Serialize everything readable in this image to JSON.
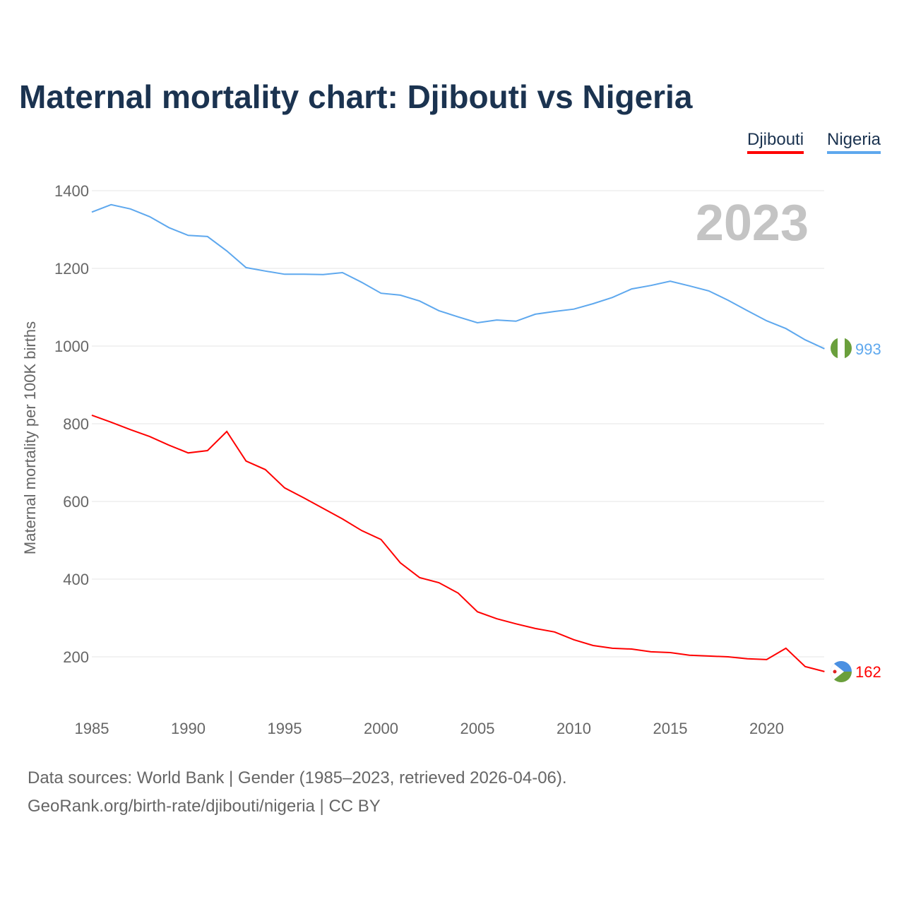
{
  "title": "Maternal mortality chart: Djibouti vs Nigeria",
  "legend": [
    "Djibouti",
    "Nigeria"
  ],
  "source_line1": "Data sources: World Bank | Gender (1985–2023, retrieved 2026-04-06).",
  "source_line2": "GeoRank.org/birth-rate/djibouti/nigeria | CC BY",
  "chart_data": {
    "type": "line",
    "title": "Maternal mortality chart: Djibouti vs Nigeria",
    "ylabel": "Maternal mortality per 100K births",
    "xlabel": "",
    "year_watermark": "2023",
    "x": [
      1985,
      1986,
      1987,
      1988,
      1989,
      1990,
      1991,
      1992,
      1993,
      1994,
      1995,
      1996,
      1997,
      1998,
      1999,
      2000,
      2001,
      2002,
      2003,
      2004,
      2005,
      2006,
      2007,
      2008,
      2009,
      2010,
      2011,
      2012,
      2013,
      2014,
      2015,
      2016,
      2017,
      2018,
      2019,
      2020,
      2021,
      2022,
      2023
    ],
    "xticks": [
      1985,
      1990,
      1995,
      2000,
      2005,
      2010,
      2015,
      2020
    ],
    "yticks": [
      200,
      400,
      600,
      800,
      1000,
      1200,
      1400
    ],
    "xlim": [
      1985,
      2023
    ],
    "ylim": [
      100,
      1450
    ],
    "grid": true,
    "legend_position": "top-right",
    "series": [
      {
        "name": "Djibouti",
        "color": "#ff0000",
        "end_label": "162",
        "values": [
          822,
          804,
          785,
          767,
          745,
          725,
          731,
          780,
          704,
          682,
          635,
          609,
          582,
          555,
          525,
          502,
          442,
          404,
          391,
          364,
          316,
          298,
          285,
          273,
          264,
          244,
          229,
          222,
          220,
          213,
          211,
          204,
          202,
          200,
          195,
          193,
          222,
          175,
          162
        ]
      },
      {
        "name": "Nigeria",
        "color": "#5ea8ee",
        "end_label": "993",
        "values": [
          1345,
          1364,
          1353,
          1333,
          1305,
          1285,
          1282,
          1245,
          1202,
          1193,
          1185,
          1185,
          1184,
          1189,
          1164,
          1136,
          1131,
          1116,
          1091,
          1075,
          1060,
          1067,
          1064,
          1082,
          1089,
          1095,
          1109,
          1125,
          1147,
          1156,
          1167,
          1155,
          1142,
          1118,
          1091,
          1065,
          1045,
          1016,
          993
        ]
      }
    ]
  }
}
